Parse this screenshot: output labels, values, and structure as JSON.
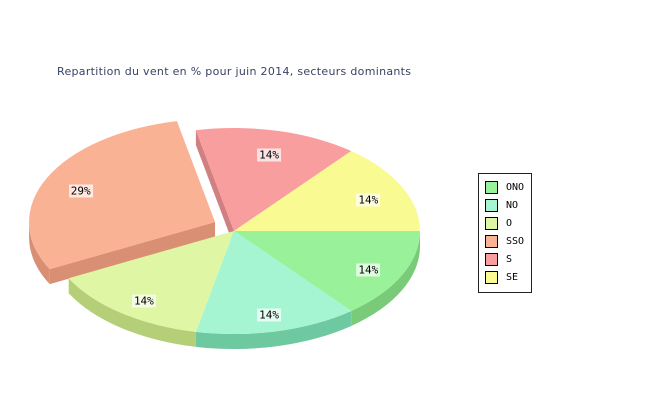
{
  "title_color": "#3A4266",
  "background_color": "#FFFFFF",
  "chart_data": {
    "type": "pie",
    "style": "3d-exploded",
    "title": "Repartition du vent en % pour juin 2014, secteurs dominants",
    "units": "%",
    "legend_position": "right",
    "legend_border_color": "#222222",
    "label_background": "rgba(255,255,255,0.7)",
    "series": [
      {
        "name": "ONO",
        "value": 14,
        "label": "14%",
        "color": "#99F299",
        "side_color": "#79CB79",
        "exploded": false
      },
      {
        "name": "NO",
        "value": 14,
        "label": "14%",
        "color": "#A5F5D2",
        "side_color": "#6FC9A0",
        "exploded": false
      },
      {
        "name": "O",
        "value": 14,
        "label": "14%",
        "color": "#DFF6A4",
        "side_color": "#B5CF78",
        "exploded": false
      },
      {
        "name": "SSO",
        "value": 29,
        "label": "29%",
        "color": "#FAB294",
        "side_color": "#D98F74",
        "exploded": true
      },
      {
        "name": "S",
        "value": 14,
        "label": "14%",
        "color": "#F99E9E",
        "side_color": "#D08080",
        "exploded": false
      },
      {
        "name": "SE",
        "value": 14,
        "label": "14%",
        "color": "#FAFA93",
        "side_color": "#D6D66E",
        "exploded": false
      }
    ]
  }
}
